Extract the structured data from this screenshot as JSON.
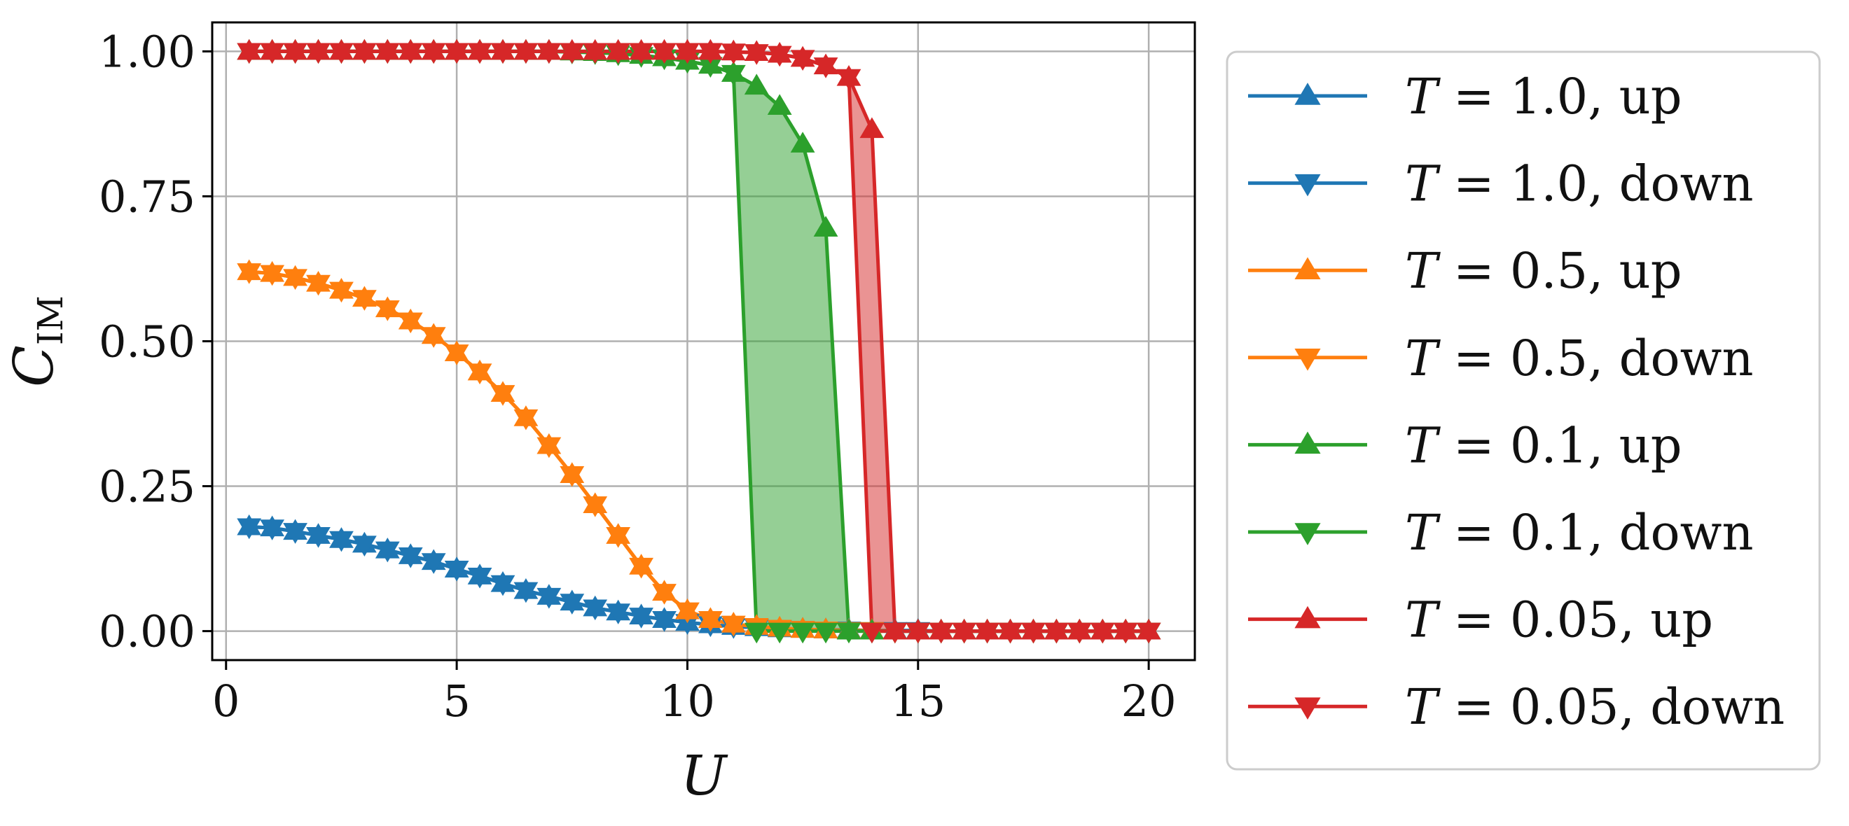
{
  "chart_data": {
    "type": "line",
    "xlabel": "U",
    "ylabel": "C",
    "ylabel_sub": "IM",
    "xlim": [
      -0.3,
      21
    ],
    "ylim": [
      -0.05,
      1.05
    ],
    "xticks": [
      0,
      5,
      10,
      15,
      20
    ],
    "xtick_labels": [
      "0",
      "5",
      "10",
      "15",
      "20"
    ],
    "yticks": [
      0.0,
      0.25,
      0.5,
      0.75,
      1.0
    ],
    "ytick_labels": [
      "0.00",
      "0.25",
      "0.50",
      "0.75",
      "1.00"
    ],
    "grid": true,
    "legend_position": "outside-right",
    "x": [
      0.5,
      1.0,
      1.5,
      2.0,
      2.5,
      3.0,
      3.5,
      4.0,
      4.5,
      5.0,
      5.5,
      6.0,
      6.5,
      7.0,
      7.5,
      8.0,
      8.5,
      9.0,
      9.5,
      10.0,
      10.5,
      11.0,
      11.5,
      12.0,
      12.5,
      13.0,
      13.5,
      14.0,
      14.5,
      15.0,
      15.5,
      16.0,
      16.5,
      17.0,
      17.5,
      18.0,
      18.5,
      19.0,
      19.5,
      20.0
    ],
    "series": [
      {
        "name_prefix": "T",
        "name_value": "= 1.0, up",
        "color": "#1f77b4",
        "marker": "up",
        "values": [
          0.18,
          0.178,
          0.172,
          0.165,
          0.158,
          0.15,
          0.14,
          0.13,
          0.12,
          0.107,
          0.095,
          0.082,
          0.07,
          0.06,
          0.05,
          0.04,
          0.033,
          0.026,
          0.02,
          0.015,
          0.011,
          0.008,
          0.006,
          0.004,
          0.003,
          0.002,
          0.002,
          0.001,
          0.001,
          0.001,
          0.0,
          0.0,
          0.0,
          0.0,
          0.0,
          0.0,
          0.0,
          0.0,
          0.0,
          0.0
        ]
      },
      {
        "name_prefix": "T",
        "name_value": "= 1.0, down",
        "color": "#1f77b4",
        "marker": "down",
        "values": [
          0.18,
          0.178,
          0.172,
          0.165,
          0.158,
          0.15,
          0.14,
          0.13,
          0.12,
          0.107,
          0.095,
          0.082,
          0.07,
          0.06,
          0.05,
          0.04,
          0.033,
          0.026,
          0.02,
          0.015,
          0.011,
          0.008,
          0.006,
          0.004,
          0.003,
          0.002,
          0.002,
          0.001,
          0.001,
          0.001,
          0.0,
          0.0,
          0.0,
          0.0,
          0.0,
          0.0,
          0.0,
          0.0,
          0.0,
          0.0
        ]
      },
      {
        "name_prefix": "T",
        "name_value": "= 0.5, up",
        "color": "#ff7f0e",
        "marker": "up",
        "values": [
          0.62,
          0.617,
          0.61,
          0.6,
          0.588,
          0.574,
          0.556,
          0.535,
          0.51,
          0.48,
          0.447,
          0.41,
          0.368,
          0.32,
          0.27,
          0.218,
          0.165,
          0.112,
          0.067,
          0.035,
          0.02,
          0.012,
          0.008,
          0.005,
          0.003,
          0.002,
          0.001,
          0.001,
          0.0,
          0.0,
          0.0,
          0.0,
          0.0,
          0.0,
          0.0,
          0.0,
          0.0,
          0.0,
          0.0,
          0.0
        ]
      },
      {
        "name_prefix": "T",
        "name_value": "= 0.5, down",
        "color": "#ff7f0e",
        "marker": "down",
        "values": [
          0.62,
          0.617,
          0.61,
          0.6,
          0.588,
          0.574,
          0.556,
          0.535,
          0.51,
          0.48,
          0.447,
          0.41,
          0.368,
          0.32,
          0.27,
          0.218,
          0.165,
          0.112,
          0.067,
          0.035,
          0.02,
          0.012,
          0.008,
          0.005,
          0.003,
          0.002,
          0.001,
          0.001,
          0.0,
          0.0,
          0.0,
          0.0,
          0.0,
          0.0,
          0.0,
          0.0,
          0.0,
          0.0,
          0.0,
          0.0
        ]
      },
      {
        "name_prefix": "T",
        "name_value": "= 0.1, up",
        "color": "#2ca02c",
        "marker": "up",
        "values": [
          1.0,
          1.0,
          1.0,
          1.0,
          1.0,
          1.0,
          1.0,
          1.0,
          1.0,
          1.0,
          1.0,
          1.0,
          1.0,
          1.0,
          0.999,
          0.998,
          0.996,
          0.993,
          0.989,
          0.983,
          0.976,
          0.962,
          0.94,
          0.905,
          0.84,
          0.695,
          0.0,
          0.0,
          0.0,
          0.0,
          0.0,
          0.0,
          0.0,
          0.0,
          0.0,
          0.0,
          0.0,
          0.0,
          0.0,
          0.0
        ]
      },
      {
        "name_prefix": "T",
        "name_value": "= 0.1, down",
        "color": "#2ca02c",
        "marker": "down",
        "values": [
          1.0,
          1.0,
          1.0,
          1.0,
          1.0,
          1.0,
          1.0,
          1.0,
          1.0,
          1.0,
          1.0,
          1.0,
          1.0,
          1.0,
          0.999,
          0.998,
          0.996,
          0.993,
          0.989,
          0.983,
          0.976,
          0.962,
          0.0,
          0.0,
          0.0,
          0.0,
          0.0,
          0.0,
          0.0,
          0.0,
          0.0,
          0.0,
          0.0,
          0.0,
          0.0,
          0.0,
          0.0,
          0.0,
          0.0,
          0.0
        ]
      },
      {
        "name_prefix": "T",
        "name_value": "= 0.05, up",
        "color": "#d62728",
        "marker": "up",
        "values": [
          1.0,
          1.0,
          1.0,
          1.0,
          1.0,
          1.0,
          1.0,
          1.0,
          1.0,
          1.0,
          1.0,
          1.0,
          1.0,
          1.0,
          1.0,
          1.0,
          1.0,
          1.0,
          1.0,
          1.0,
          1.0,
          0.999,
          0.998,
          0.995,
          0.988,
          0.975,
          0.955,
          0.865,
          0.0,
          0.0,
          0.0,
          0.0,
          0.0,
          0.0,
          0.0,
          0.0,
          0.0,
          0.0,
          0.0,
          0.0
        ]
      },
      {
        "name_prefix": "T",
        "name_value": "= 0.05, down",
        "color": "#d62728",
        "marker": "down",
        "values": [
          1.0,
          1.0,
          1.0,
          1.0,
          1.0,
          1.0,
          1.0,
          1.0,
          1.0,
          1.0,
          1.0,
          1.0,
          1.0,
          1.0,
          1.0,
          1.0,
          1.0,
          1.0,
          1.0,
          1.0,
          1.0,
          0.999,
          0.998,
          0.995,
          0.988,
          0.975,
          0.955,
          0.0,
          0.0,
          0.0,
          0.0,
          0.0,
          0.0,
          0.0,
          0.0,
          0.0,
          0.0,
          0.0,
          0.0,
          0.0
        ]
      }
    ],
    "hysteresis_fills": [
      {
        "up_series": 4,
        "down_series": 5,
        "color": "#2ca02c",
        "opacity": 0.5
      },
      {
        "up_series": 6,
        "down_series": 7,
        "color": "#d62728",
        "opacity": 0.5
      }
    ]
  }
}
